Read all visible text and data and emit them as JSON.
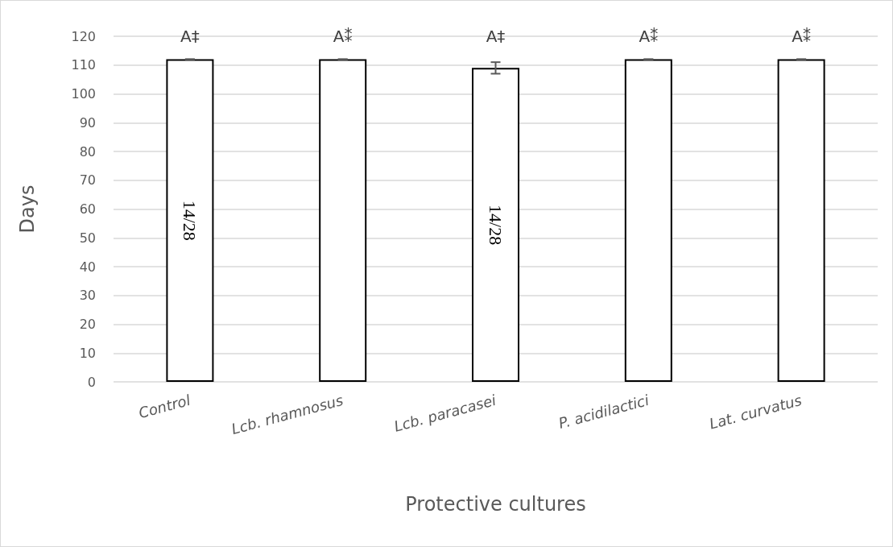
{
  "chart_data": {
    "type": "bar",
    "xlabel": "Protective cultures",
    "ylabel": "Days",
    "categories": [
      "Control",
      "Lcb. rhamnosus",
      "Lcb. paracasei",
      "P. acidilactici",
      "Lat. curvatus"
    ],
    "values": [
      112,
      112,
      109,
      112,
      112
    ],
    "errors": [
      0,
      0,
      2,
      0,
      0
    ],
    "color": "#ffffff",
    "ylim": [
      0,
      120
    ],
    "yticks": [
      0,
      10,
      20,
      30,
      40,
      50,
      60,
      70,
      80,
      90,
      100,
      110,
      120
    ],
    "grid": "y",
    "value_labels": [
      "A‡",
      "A⁑",
      "A‡",
      "A⁑",
      "A⁑"
    ],
    "annotations": [
      "14/28",
      "14/28"
    ]
  }
}
